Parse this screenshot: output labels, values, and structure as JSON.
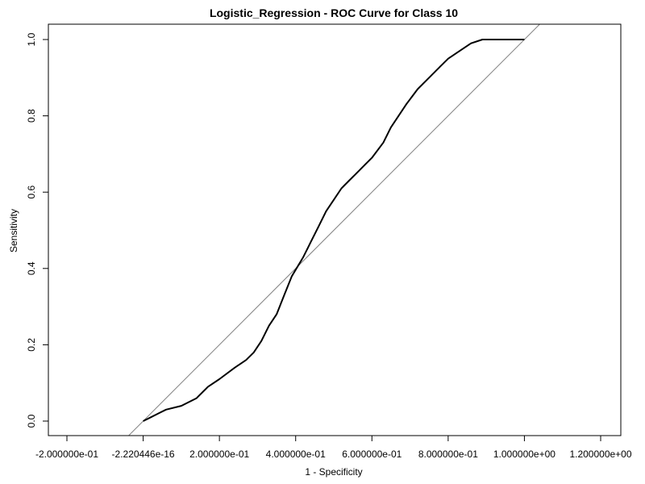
{
  "chart_data": {
    "type": "line",
    "title": "Logistic_Regression - ROC Curve for Class 10",
    "xlabel": "1 - Specificity",
    "ylabel": "Sensitivity",
    "xlim": [
      -0.2,
      1.2
    ],
    "ylim": [
      0.0,
      1.0
    ],
    "x_ticks": [
      {
        "value": -0.2,
        "label": "-2.000000e-01"
      },
      {
        "value": 0.0,
        "label": "-2.220446e-16"
      },
      {
        "value": 0.2,
        "label": "2.000000e-01"
      },
      {
        "value": 0.4,
        "label": "4.000000e-01"
      },
      {
        "value": 0.6,
        "label": "6.000000e-01"
      },
      {
        "value": 0.8,
        "label": "8.000000e-01"
      },
      {
        "value": 1.0,
        "label": "1.000000e+00"
      },
      {
        "value": 1.2,
        "label": "1.200000e+00"
      }
    ],
    "y_ticks": [
      {
        "value": 0.0,
        "label": "0.0"
      },
      {
        "value": 0.2,
        "label": "0.2"
      },
      {
        "value": 0.4,
        "label": "0.4"
      },
      {
        "value": 0.6,
        "label": "0.6"
      },
      {
        "value": 0.8,
        "label": "0.8"
      },
      {
        "value": 1.0,
        "label": "1.0"
      }
    ],
    "grid": false,
    "reference_line": {
      "intercept": 0,
      "slope": 1,
      "color": "#808080"
    },
    "series": [
      {
        "color": "#000000",
        "x": [
          0.0,
          0.02,
          0.04,
          0.06,
          0.1,
          0.14,
          0.17,
          0.2,
          0.24,
          0.27,
          0.29,
          0.31,
          0.33,
          0.35,
          0.37,
          0.39,
          0.42,
          0.44,
          0.46,
          0.48,
          0.5,
          0.52,
          0.54,
          0.56,
          0.58,
          0.6,
          0.63,
          0.65,
          0.67,
          0.69,
          0.72,
          0.75,
          0.78,
          0.8,
          0.83,
          0.86,
          0.89,
          0.92,
          1.0
        ],
        "y": [
          0.0,
          0.01,
          0.02,
          0.03,
          0.04,
          0.06,
          0.09,
          0.11,
          0.14,
          0.16,
          0.18,
          0.21,
          0.25,
          0.28,
          0.33,
          0.38,
          0.43,
          0.47,
          0.51,
          0.55,
          0.58,
          0.61,
          0.63,
          0.65,
          0.67,
          0.69,
          0.73,
          0.77,
          0.8,
          0.83,
          0.87,
          0.9,
          0.93,
          0.95,
          0.97,
          0.99,
          1.0,
          1.0,
          1.0
        ]
      }
    ]
  }
}
